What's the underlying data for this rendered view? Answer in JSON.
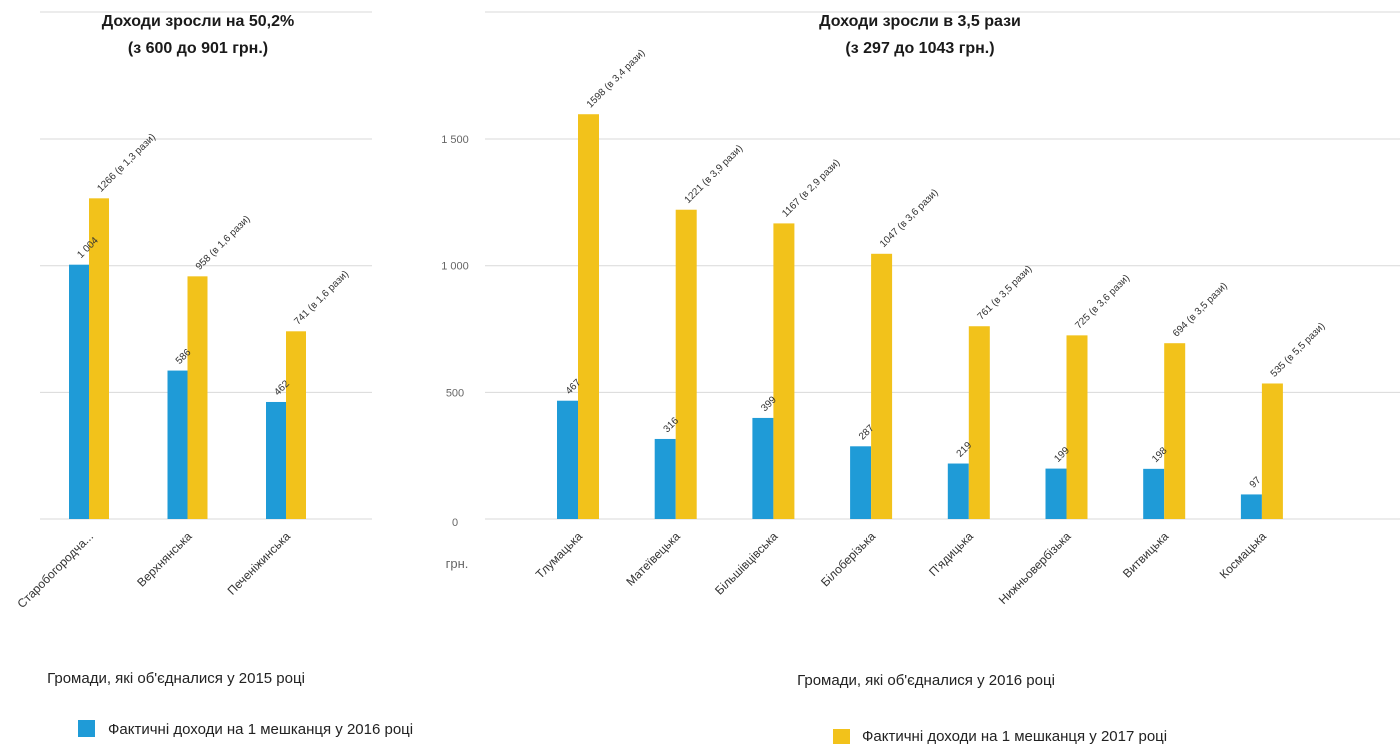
{
  "colors": {
    "series2016": "#1f9bd7",
    "series2017": "#f2c21b",
    "grid": "#d9d9d9"
  },
  "legend": [
    {
      "label": "Фактичні доходи на 1 мешканця у 2016 році",
      "color": "#1f9bd7"
    },
    {
      "label": "Фактичні доходи на 1 мешканця у 2017 році",
      "color": "#f2c21b"
    }
  ],
  "unit_label": "грн.",
  "chart_data": [
    {
      "type": "bar",
      "title": "Доходи зросли на 50,2%",
      "subtitle": "(з 600 до 901 грн.)",
      "group_label": "Громади, які об'єдналися у 2015 році",
      "categories": [
        "Старобогородча...",
        "Верхнянська",
        "Печеніжинська"
      ],
      "series": [
        {
          "values": [
            1004,
            586,
            462
          ],
          "labels": [
            "1 004",
            "586",
            "462"
          ]
        },
        {
          "values": [
            1266,
            958,
            741
          ],
          "labels": [
            "1266 (в 1,3 рази)",
            "958 (в 1,6 рази)",
            "741 (в 1,6 рази)"
          ]
        }
      ],
      "ylim": [
        0,
        1500
      ],
      "yticks": [],
      "grid": true
    },
    {
      "type": "bar",
      "title": "Доходи зросли в 3,5 рази",
      "subtitle": "(з 297 до 1043 грн.)",
      "group_label": "Громади, які об'єдналися у 2016 році",
      "categories": [
        "Тлумацька",
        "Матеївецька",
        "Більшівцівська",
        "Білоберізька",
        "П'ядицька",
        "Нижньовербізька",
        "Витвицька",
        "Космацька"
      ],
      "series": [
        {
          "values": [
            467,
            316,
            399,
            287,
            219,
            199,
            198,
            97
          ],
          "labels": [
            "467",
            "316",
            "399",
            "287",
            "219",
            "199",
            "198",
            "97"
          ]
        },
        {
          "values": [
            1598,
            1221,
            1167,
            1047,
            761,
            725,
            694,
            535
          ],
          "labels": [
            "1598 (в 3,4 рази)",
            "1221 (в 3,9 рази)",
            "1167 (в 2,9 рази)",
            "1047 (в 3,6 рази)",
            "761 (в 3,5 рази)",
            "725 (в 3,6 рази)",
            "694 (в 3,5 рази)",
            "535 (в 5,5 рази)"
          ]
        }
      ],
      "ylim": [
        0,
        1500
      ],
      "yticks": [
        "0",
        "500",
        "1 000",
        "1 500"
      ],
      "grid": true
    }
  ]
}
